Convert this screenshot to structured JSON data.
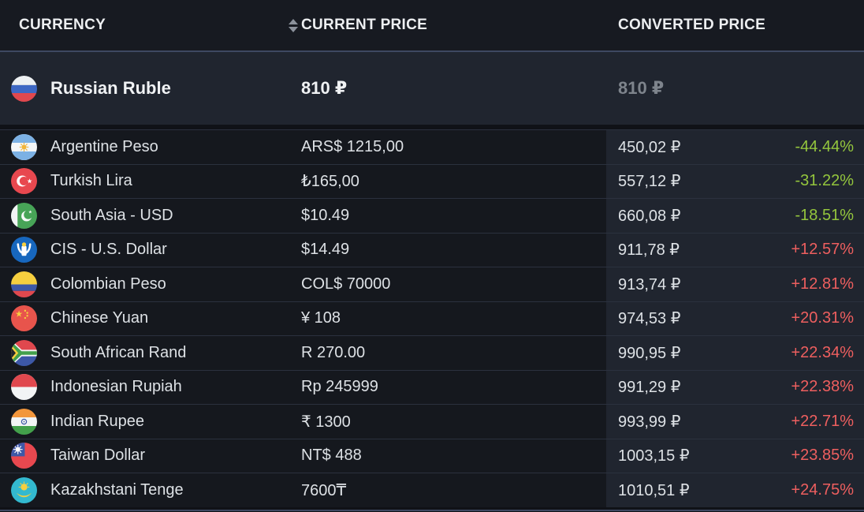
{
  "table": {
    "columns": {
      "currency": "CURRENCY",
      "current_price": "CURRENT PRICE",
      "converted_price": "CONVERTED PRICE"
    },
    "base_row": {
      "flag": "russia",
      "name": "Russian Ruble",
      "current_price": "810 ₽",
      "converted_price": "810 ₽"
    },
    "rows": [
      {
        "flag": "argentina",
        "name": "Argentine Peso",
        "current_price": "ARS$ 1215,00",
        "converted_price": "450,02 ₽",
        "difference": "-44.44%",
        "direction": "down"
      },
      {
        "flag": "turkey",
        "name": "Turkish Lira",
        "current_price": "₺165,00",
        "converted_price": "557,12 ₽",
        "difference": "-31.22%",
        "direction": "down"
      },
      {
        "flag": "pakistan",
        "name": "South Asia - USD",
        "current_price": "$10.49",
        "converted_price": "660,08 ₽",
        "difference": "-18.51%",
        "direction": "down"
      },
      {
        "flag": "cis",
        "name": "CIS - U.S. Dollar",
        "current_price": "$14.49",
        "converted_price": "911,78 ₽",
        "difference": "+12.57%",
        "direction": "up"
      },
      {
        "flag": "colombia",
        "name": "Colombian Peso",
        "current_price": "COL$ 70000",
        "converted_price": "913,74 ₽",
        "difference": "+12.81%",
        "direction": "up"
      },
      {
        "flag": "china",
        "name": "Chinese Yuan",
        "current_price": "¥ 108",
        "converted_price": "974,53 ₽",
        "difference": "+20.31%",
        "direction": "up"
      },
      {
        "flag": "south-africa",
        "name": "South African Rand",
        "current_price": "R 270.00",
        "converted_price": "990,95 ₽",
        "difference": "+22.34%",
        "direction": "up"
      },
      {
        "flag": "indonesia",
        "name": "Indonesian Rupiah",
        "current_price": "Rp 245999",
        "converted_price": "991,29 ₽",
        "difference": "+22.38%",
        "direction": "up"
      },
      {
        "flag": "india",
        "name": "Indian Rupee",
        "current_price": "₹ 1300",
        "converted_price": "993,99 ₽",
        "difference": "+22.71%",
        "direction": "up"
      },
      {
        "flag": "taiwan",
        "name": "Taiwan Dollar",
        "current_price": "NT$ 488",
        "converted_price": "1003,15 ₽",
        "difference": "+23.85%",
        "direction": "up"
      },
      {
        "flag": "kazakhstan",
        "name": "Kazakhstani Tenge",
        "current_price": "7600₸",
        "converted_price": "1010,51 ₽",
        "difference": "+24.75%",
        "direction": "up"
      }
    ],
    "colors": {
      "positive": "#ee5f5f",
      "negative": "#94c63d",
      "base_converted_muted": "#7e848c"
    }
  }
}
